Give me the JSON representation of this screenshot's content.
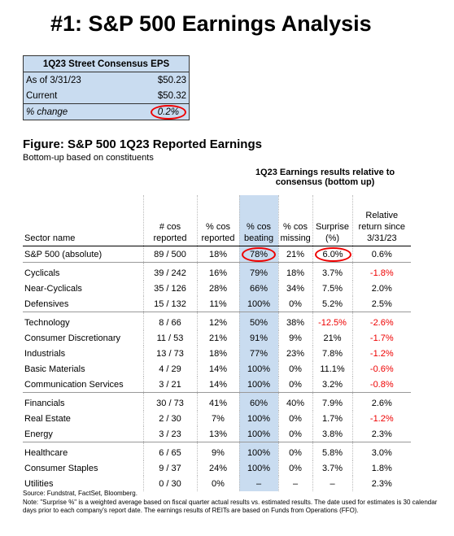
{
  "title": "#1: S&P 500 Earnings Analysis",
  "consensus": {
    "header": "1Q23 Street Consensus EPS",
    "rows": [
      [
        "As of  3/31/23",
        "$50.23"
      ],
      [
        "Current",
        "$50.32"
      ],
      [
        "% change",
        "0.2%"
      ]
    ]
  },
  "figure": {
    "title": "Figure: S&P 500 1Q23 Reported Earnings",
    "subtitle": "Bottom-up based on constituents",
    "group_header": "1Q23 Earnings results relative to consensus (bottom up)",
    "columns": [
      "Sector name",
      "# cos reported",
      "% cos reported",
      "% cos beating",
      "% cos missing",
      "Surprise (%)",
      "Relative return since 3/31/23"
    ],
    "groups": [
      [
        [
          "S&P 500 (absolute)",
          "89 / 500",
          "18%",
          "78%",
          "21%",
          "6.0%",
          "0.6%"
        ]
      ],
      [
        [
          "Cyclicals",
          "39 / 242",
          "16%",
          "79%",
          "18%",
          "3.7%",
          "-1.8%"
        ],
        [
          "Near-Cyclicals",
          "35 / 126",
          "28%",
          "66%",
          "34%",
          "7.5%",
          "2.0%"
        ],
        [
          "Defensives",
          "15 / 132",
          "11%",
          "100%",
          "0%",
          "5.2%",
          "2.5%"
        ]
      ],
      [
        [
          "Technology",
          "8 / 66",
          "12%",
          "50%",
          "38%",
          "-12.5%",
          "-2.6%"
        ],
        [
          "Consumer Discretionary",
          "11 / 53",
          "21%",
          "91%",
          "9%",
          "21%",
          "-1.7%"
        ],
        [
          "Industrials",
          "13 / 73",
          "18%",
          "77%",
          "23%",
          "7.8%",
          "-1.2%"
        ],
        [
          "Basic Materials",
          "4 / 29",
          "14%",
          "100%",
          "0%",
          "11.1%",
          "-0.6%"
        ],
        [
          "Communication Services",
          "3 / 21",
          "14%",
          "100%",
          "0%",
          "3.2%",
          "-0.8%"
        ]
      ],
      [
        [
          "Financials",
          "30 / 73",
          "41%",
          "60%",
          "40%",
          "7.9%",
          "2.6%"
        ],
        [
          "Real Estate",
          "2 / 30",
          "7%",
          "100%",
          "0%",
          "1.7%",
          "-1.2%"
        ],
        [
          "Energy",
          "3 / 23",
          "13%",
          "100%",
          "0%",
          "3.8%",
          "2.3%"
        ]
      ],
      [
        [
          "Healthcare",
          "6 / 65",
          "9%",
          "100%",
          "0%",
          "5.8%",
          "3.0%"
        ],
        [
          "Consumer Staples",
          "9 / 37",
          "24%",
          "100%",
          "0%",
          "3.7%",
          "1.8%"
        ],
        [
          "Utilities",
          "0 / 30",
          "0%",
          "–",
          "–",
          "–",
          "2.3%"
        ]
      ]
    ]
  },
  "footnotes": {
    "source": "Source: Fundstrat, FactSet, Bloomberg.",
    "note": "Note: \"Surprise %\" is a weighted average based on fiscal quarter actual results vs. estimated results.  The date used for estimates is 30 calendar days prior to each company's report date. The earnings results of REITs are based on Funds from Operations (FFO)."
  }
}
